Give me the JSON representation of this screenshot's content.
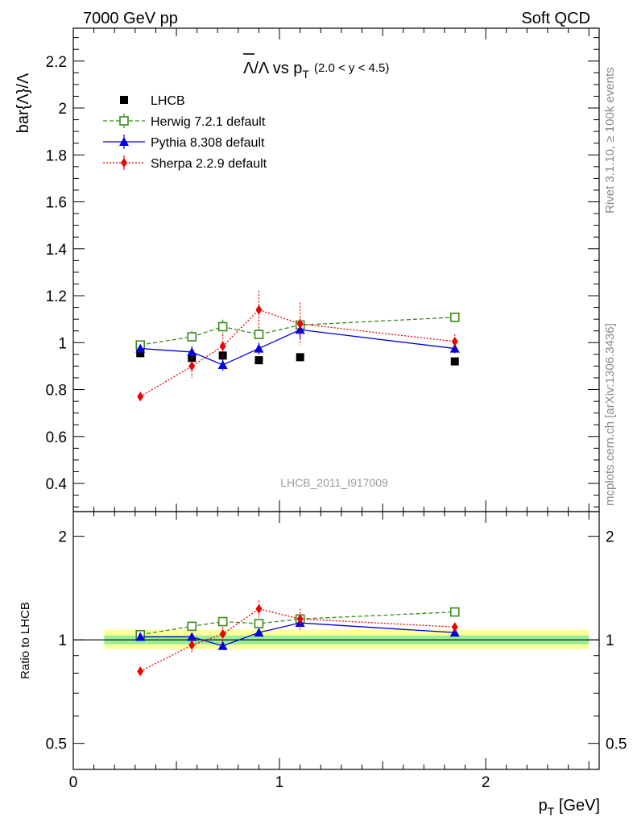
{
  "header": {
    "left": "7000 GeV pp",
    "right": "Soft QCD"
  },
  "side_labels": {
    "rivet": "Rivet 3.1.10, ≥ 100k events",
    "mcplots": "mcplots.cern.ch [arXiv:1306.3436]"
  },
  "watermark": "LHCB_2011_I917009",
  "colors": {
    "data": "#000000",
    "herwig": "#3a8a1a",
    "pythia": "#0000dd",
    "sherpa": "#ee0000",
    "band_yellow": "#ffff99",
    "band_green": "#99ee99"
  },
  "chart_data": [
    {
      "type": "scatter",
      "title": {
        "main": "Λ/Λ vs p",
        "sub": "T",
        "range": "(2.0 < y < 4.5)"
      },
      "ylabel": "bar{Λ}/Λ",
      "xlim": [
        0,
        2.55
      ],
      "ylim": [
        0.28,
        2.34
      ],
      "yticks": [
        0.4,
        0.6,
        0.8,
        1,
        1.2,
        1.4,
        1.6,
        1.8,
        2,
        2.2
      ],
      "yticklabels": [
        "0.4",
        "0.6",
        "0.8",
        "1",
        "1.2",
        "1.4",
        "1.6",
        "1.8",
        "2",
        "2.2"
      ],
      "legend_position": "top-left",
      "series": [
        {
          "key": "data",
          "name": "LHCB",
          "marker": "square-filled",
          "x": [
            0.325,
            0.575,
            0.725,
            0.9,
            1.1,
            1.85
          ],
          "y": [
            0.955,
            0.935,
            0.945,
            0.925,
            0.938,
            0.92
          ],
          "yerr": [
            0.01,
            0.01,
            0.01,
            0.01,
            0.01,
            0.01
          ]
        },
        {
          "key": "herwig",
          "name": "Herwig 7.2.1 default",
          "marker": "square-open",
          "line": "dashed",
          "x": [
            0.325,
            0.575,
            0.725,
            0.9,
            1.1,
            1.85
          ],
          "y": [
            0.99,
            1.025,
            1.068,
            1.035,
            1.075,
            1.108
          ],
          "yerr": [
            0.015,
            0.025,
            0.03,
            0.025,
            0.03,
            0.02
          ]
        },
        {
          "key": "pythia",
          "name": "Pythia 8.308 default",
          "marker": "triangle",
          "line": "solid",
          "x": [
            0.325,
            0.575,
            0.725,
            0.9,
            1.1,
            1.85
          ],
          "y": [
            0.975,
            0.96,
            0.905,
            0.975,
            1.055,
            0.975
          ],
          "yerr": [
            0.015,
            0.025,
            0.025,
            0.025,
            0.04,
            0.02
          ]
        },
        {
          "key": "sherpa",
          "name": "Sherpa 2.2.9 default",
          "marker": "diamond",
          "line": "dotted",
          "x": [
            0.325,
            0.575,
            0.725,
            0.9,
            1.1,
            1.85
          ],
          "y": [
            0.77,
            0.9,
            0.985,
            1.14,
            1.08,
            1.005
          ],
          "yerr": [
            0.02,
            0.05,
            0.05,
            0.08,
            0.09,
            0.03
          ]
        }
      ]
    },
    {
      "type": "scatter",
      "ylabel": "Ratio to LHCB",
      "xlabel": {
        "main": "p",
        "sub": "T",
        "unit": " [GeV]"
      },
      "xlim": [
        0,
        2.55
      ],
      "ylim": [
        0.42,
        2.36
      ],
      "scale": "log",
      "xticks": [
        0,
        1,
        2
      ],
      "xticklabels": [
        "0",
        "1",
        "2"
      ],
      "yticks": [
        0.5,
        1,
        2
      ],
      "yticklabels": [
        "0.5",
        "1",
        "2"
      ],
      "band": {
        "x": [
          0.15,
          2.5
        ],
        "yellow": [
          0.94,
          1.07
        ],
        "green": [
          0.97,
          1.03
        ]
      },
      "series": [
        {
          "key": "herwig",
          "x": [
            0.325,
            0.575,
            0.725,
            0.9,
            1.1,
            1.85
          ],
          "y": [
            1.035,
            1.095,
            1.13,
            1.115,
            1.15,
            1.205
          ],
          "yerr": [
            0.015,
            0.02,
            0.02,
            0.02,
            0.025,
            0.015
          ]
        },
        {
          "key": "pythia",
          "x": [
            0.325,
            0.575,
            0.725,
            0.9,
            1.1,
            1.85
          ],
          "y": [
            1.02,
            1.02,
            0.96,
            1.05,
            1.12,
            1.05
          ],
          "yerr": [
            0.015,
            0.02,
            0.02,
            0.02,
            0.03,
            0.015
          ]
        },
        {
          "key": "sherpa",
          "x": [
            0.325,
            0.575,
            0.725,
            0.9,
            1.1,
            1.85
          ],
          "y": [
            0.81,
            0.965,
            1.04,
            1.23,
            1.15,
            1.09
          ],
          "yerr": [
            0.02,
            0.05,
            0.05,
            0.07,
            0.08,
            0.03
          ]
        }
      ]
    }
  ]
}
